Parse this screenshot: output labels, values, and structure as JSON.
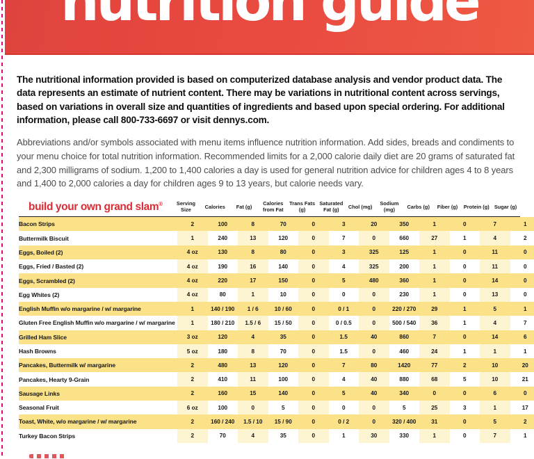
{
  "banner": {
    "title": "nutrition guide",
    "bg_color_start": "#e0433d",
    "bg_color_end": "#ee5a43",
    "text_color": "#ffffff"
  },
  "trim": {
    "dash_color": "#e8007e"
  },
  "intro": {
    "bold_paragraph": "The nutritional information provided is based on computerized database analysis and vendor product data. The data represents an estimate of nutrient content. There may be variations in nutritional content across servings, based on variations in overall size and quantities of ingredients and based upon special ordering. For additional information, please call 800-733-6697 or visit dennys.com.",
    "regular_paragraph": "Abbreviations and/or symbols associated with menu items influence nutrition information. Add sides, breads and condiments to your menu choice for total nutrition information. Recommended limits for a 2,000 calorie daily diet are 20 grams of saturated fat and 2,300 milligrams of sodium. 1,200 to 1,400 calories a day is used for general nutrition advice for children ages 4 to 8 years and 1,400 to 2,000 calories a day for children ages 9 to 13 years, but calorie needs vary."
  },
  "table": {
    "title": "build your own grand slam",
    "reg_mark": "®",
    "title_color": "#da2c35",
    "row_yellow": "#fbe289",
    "row_pale_stripe": "#fdf4d2",
    "columns": [
      "Serving Size",
      "Calories",
      "Fat (g)",
      "Calories from Fat",
      "Trans Fats (g)",
      "Saturated Fat (g)",
      "Chol (mg)",
      "Sodium (mg)",
      "Carbs (g)",
      "Fiber (g)",
      "Protein (g)",
      "Sugar (g)"
    ],
    "rows": [
      {
        "name": "Bacon Strips",
        "values": [
          "2",
          "100",
          "8",
          "70",
          "0",
          "3",
          "20",
          "350",
          "1",
          "0",
          "7",
          "1"
        ]
      },
      {
        "name": "Buttermilk Biscuit",
        "values": [
          "1",
          "240",
          "13",
          "120",
          "0",
          "7",
          "0",
          "660",
          "27",
          "1",
          "4",
          "2"
        ]
      },
      {
        "name": "Eggs, Boiled (2)",
        "values": [
          "4 oz",
          "130",
          "8",
          "80",
          "0",
          "3",
          "325",
          "125",
          "1",
          "0",
          "11",
          "0"
        ]
      },
      {
        "name": "Eggs, Fried / Basted (2)",
        "values": [
          "4 oz",
          "190",
          "16",
          "140",
          "0",
          "4",
          "325",
          "200",
          "1",
          "0",
          "11",
          "0"
        ]
      },
      {
        "name": "Eggs, Scrambled (2)",
        "values": [
          "4 oz",
          "220",
          "17",
          "150",
          "0",
          "5",
          "480",
          "360",
          "1",
          "0",
          "14",
          "0"
        ]
      },
      {
        "name": "Egg Whites (2)",
        "values": [
          "4 oz",
          "80",
          "1",
          "10",
          "0",
          "0",
          "0",
          "230",
          "1",
          "0",
          "13",
          "0"
        ]
      },
      {
        "name": "English Muffin w/o margarine / w/ margarine",
        "values": [
          "1",
          "140 / 190",
          "1 / 6",
          "10 / 60",
          "0",
          "0 / 1",
          "0",
          "220 / 270",
          "29",
          "1",
          "5",
          "1"
        ]
      },
      {
        "name": "Gluten Free English Muffin w/o margarine / w/ margarine",
        "values": [
          "1",
          "180 / 210",
          "1.5 / 6",
          "15 / 50",
          "0",
          "0 / 0.5",
          "0",
          "500 / 540",
          "36",
          "1",
          "4",
          "7"
        ]
      },
      {
        "name": "Grilled Ham Slice",
        "values": [
          "3 oz",
          "120",
          "4",
          "35",
          "0",
          "1.5",
          "40",
          "860",
          "7",
          "0",
          "14",
          "6"
        ]
      },
      {
        "name": "Hash Browns",
        "values": [
          "5 oz",
          "180",
          "8",
          "70",
          "0",
          "1.5",
          "0",
          "460",
          "24",
          "1",
          "1",
          "1"
        ]
      },
      {
        "name": "Pancakes, Buttermilk w/ margarine",
        "values": [
          "2",
          "480",
          "13",
          "120",
          "0",
          "7",
          "80",
          "1420",
          "77",
          "2",
          "10",
          "20"
        ]
      },
      {
        "name": "Pancakes, Hearty 9-Grain",
        "values": [
          "2",
          "410",
          "11",
          "100",
          "0",
          "4",
          "40",
          "880",
          "68",
          "5",
          "10",
          "21"
        ]
      },
      {
        "name": "Sausage Links",
        "values": [
          "2",
          "160",
          "15",
          "140",
          "0",
          "5",
          "40",
          "340",
          "0",
          "0",
          "6",
          "0"
        ]
      },
      {
        "name": "Seasonal Fruit",
        "values": [
          "6 oz",
          "100",
          "0",
          "5",
          "0",
          "0",
          "0",
          "5",
          "25",
          "3",
          "1",
          "17"
        ]
      },
      {
        "name": "Toast, White, w/o margarine / w/ margarine",
        "values": [
          "2",
          "160 / 240",
          "1.5 / 10",
          "15 / 90",
          "0",
          "0 / 2",
          "0",
          "320 / 400",
          "31",
          "0",
          "5",
          "2"
        ]
      },
      {
        "name": "Turkey Bacon Strips",
        "values": [
          "2",
          "70",
          "4",
          "35",
          "0",
          "1",
          "30",
          "330",
          "1",
          "0",
          "7",
          "1"
        ]
      }
    ]
  }
}
